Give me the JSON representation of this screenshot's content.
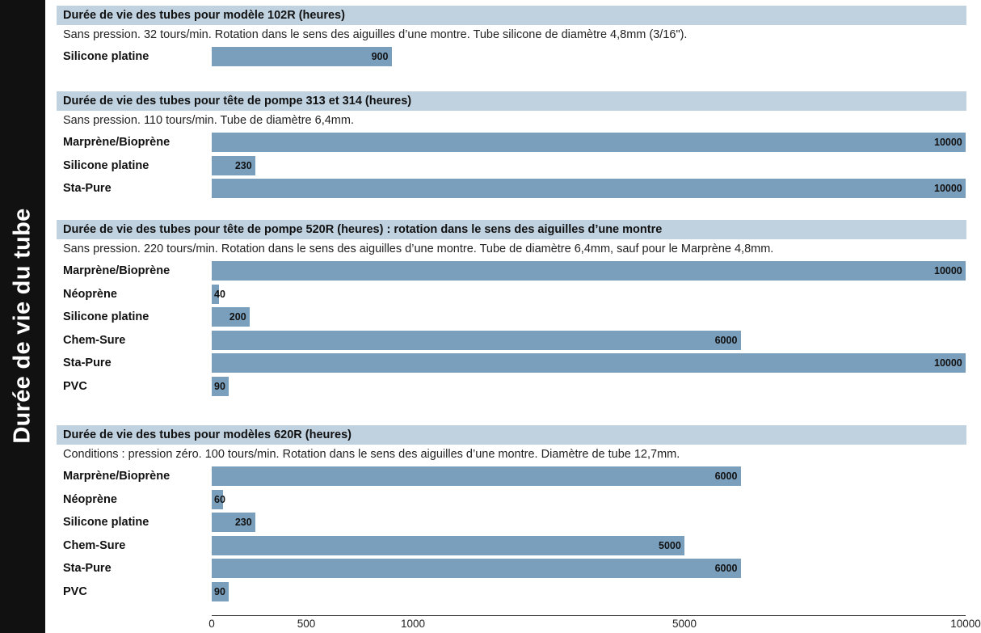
{
  "side_title": "Durée de vie du tube",
  "colors": {
    "bar": "#7a9fbd",
    "header_bg": "#c0d2e0",
    "side_tab": "#111111"
  },
  "chart_data": {
    "type": "bar",
    "orientation": "horizontal",
    "axis": {
      "scale": "piecewise-linear",
      "ticks": [
        0,
        500,
        1000,
        5000,
        10000
      ],
      "tick_labels": [
        "0",
        "500",
        "1000",
        "5000",
        "10000"
      ]
    },
    "sections": [
      {
        "title": "Durée de vie des tubes pour modèle 102R (heures)",
        "conditions": "Sans pression. 32 tours/min. Rotation dans le sens des aiguilles d’une montre. Tube silicone de diamètre 4,8mm (3/16\").",
        "categories": [
          "Silicone platine"
        ],
        "values": [
          900
        ]
      },
      {
        "title": "Durée de vie des tubes pour tête de pompe 313 et 314 (heures)",
        "conditions": "Sans pression. 110 tours/min. Tube de diamètre 6,4mm.",
        "categories": [
          "Marprène/Bioprène",
          "Silicone platine",
          "Sta-Pure"
        ],
        "values": [
          10000,
          230,
          10000
        ]
      },
      {
        "title": "Durée de vie des tubes pour tête de pompe 520R (heures) : rotation dans le sens des aiguilles d’une montre",
        "conditions": "Sans pression. 220 tours/min. Rotation dans le sens des aiguilles d’une montre. Tube de diamètre 6,4mm, sauf pour le Marprène 4,8mm.",
        "categories": [
          "Marprène/Bioprène",
          "Néoprène",
          "Silicone platine",
          "Chem-Sure",
          "Sta-Pure",
          "PVC"
        ],
        "values": [
          10000,
          40,
          200,
          6000,
          10000,
          90
        ]
      },
      {
        "title": "Durée de vie des tubes pour modèles 620R (heures)",
        "conditions": "Conditions : pression zéro. 100 tours/min. Rotation dans le sens des aiguilles d’une montre. Diamètre de tube 12,7mm.",
        "categories": [
          "Marprène/Bioprène",
          "Néoprène",
          "Silicone platine",
          "Chem-Sure",
          "Sta-Pure",
          "PVC"
        ],
        "values": [
          6000,
          60,
          230,
          5000,
          6000,
          90
        ]
      }
    ]
  }
}
